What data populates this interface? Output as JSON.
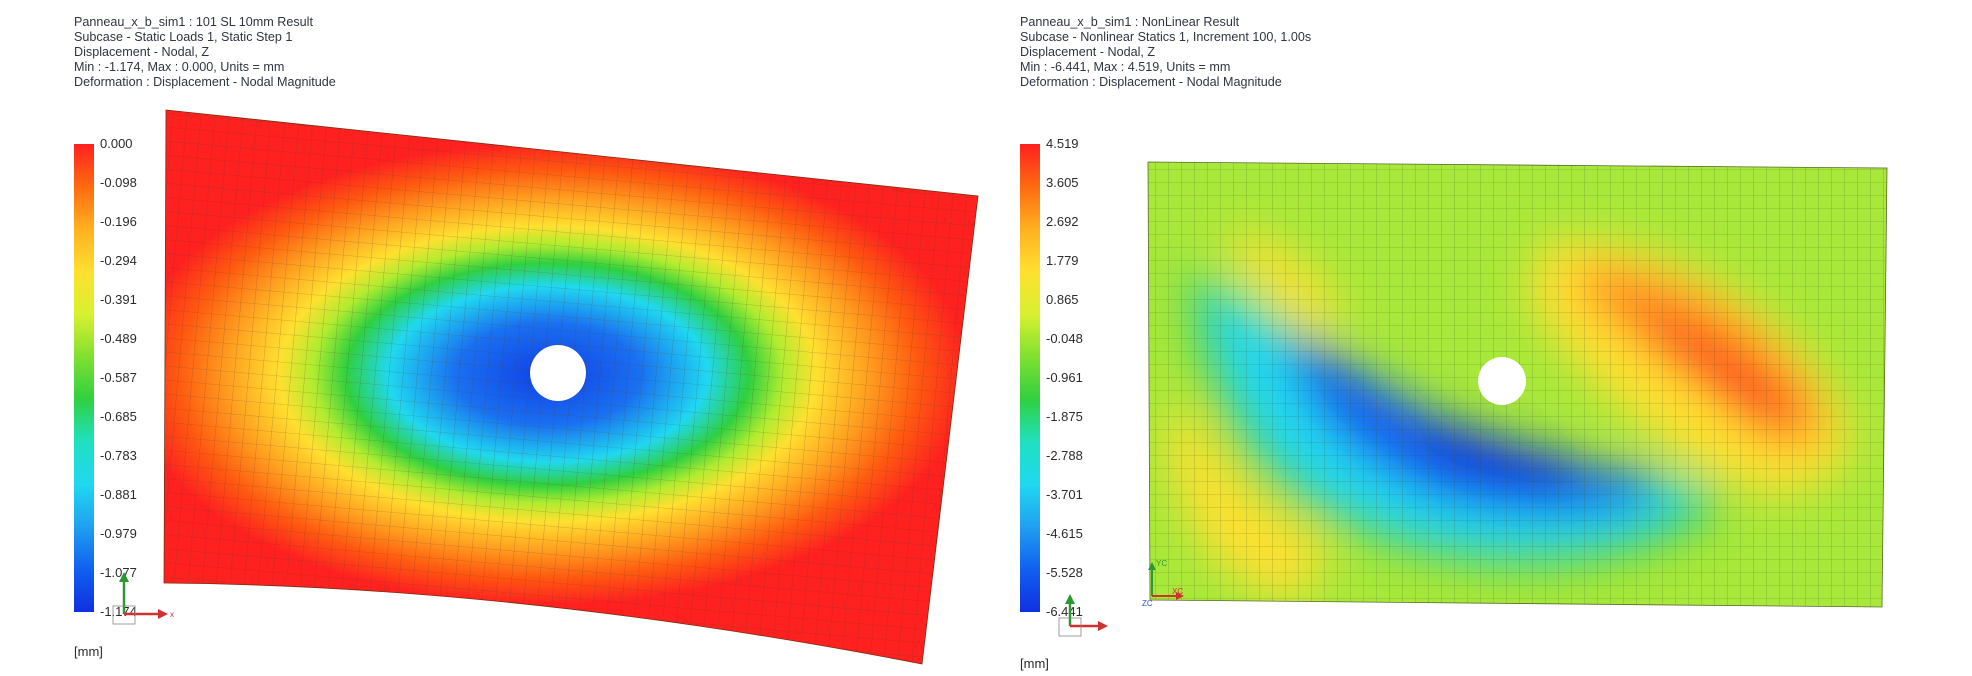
{
  "left": {
    "header": {
      "line1": "Panneau_x_b_sim1 : 101 SL 10mm Result",
      "line2": "Subcase - Static Loads 1, Static Step 1",
      "line3": "Displacement - Nodal, Z",
      "line4": "Min : -1.174, Max : 0.000, Units = mm",
      "line5": "Deformation : Displacement - Nodal Magnitude"
    },
    "legend": {
      "ticks": [
        "0.000",
        "-0.098",
        "-0.196",
        "-0.294",
        "-0.391",
        "-0.489",
        "-0.587",
        "-0.685",
        "-0.783",
        "-0.881",
        "-0.979",
        "-1.077",
        "-1.174"
      ],
      "units": "[mm]"
    },
    "triad": {
      "x": "x",
      "y": "y"
    }
  },
  "right": {
    "header": {
      "line1": "Panneau_x_b_sim1 : NonLinear Result",
      "line2": "Subcase - Nonlinear Statics 1, Increment 100, 1.00s",
      "line3": "Displacement - Nodal, Z",
      "line4": "Min : -6.441, Max : 4.519, Units = mm",
      "line5": "Deformation : Displacement - Nodal Magnitude"
    },
    "legend": {
      "ticks": [
        "4.519",
        "3.605",
        "2.692",
        "1.779",
        "0.865",
        "-0.048",
        "-0.961",
        "-1.875",
        "-2.788",
        "-3.701",
        "-4.615",
        "-5.528",
        "-6.441"
      ],
      "units": "[mm]"
    },
    "triad": {
      "x": "XC",
      "y": "YC",
      "z": "ZC"
    }
  },
  "colors": {
    "scale": [
      "#ff2020",
      "#ff6a10",
      "#ffb020",
      "#ffe030",
      "#d8f030",
      "#80e030",
      "#30d040",
      "#20e0c0",
      "#20d8f0",
      "#20a0f0",
      "#1060f0",
      "#1030e0"
    ]
  }
}
